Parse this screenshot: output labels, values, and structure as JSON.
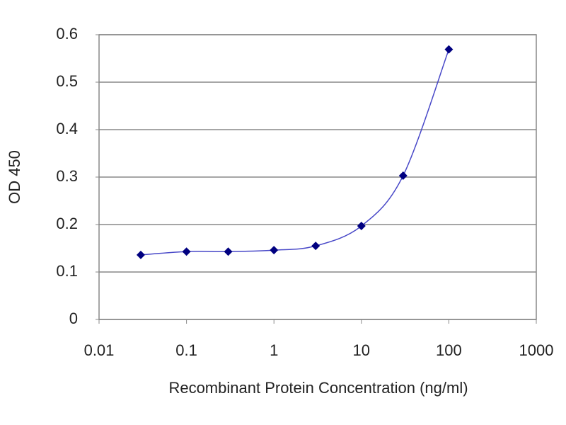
{
  "chart_data": {
    "type": "line",
    "x_label": "Recombinant Protein Concentration (ng/ml)",
    "y_label": "OD 450",
    "x": [
      0.03,
      0.1,
      0.3,
      1,
      3,
      10,
      30,
      100
    ],
    "series": [
      {
        "color": "#000080",
        "values": [
          0.136,
          0.143,
          0.143,
          0.146,
          0.155,
          0.197,
          0.303,
          0.569
        ]
      }
    ],
    "xlim": [
      0.01,
      1000
    ],
    "xticks": [
      0.01,
      0.1,
      1,
      10,
      100,
      1000
    ],
    "xscale": "log",
    "ylim": [
      0,
      0.6
    ],
    "yticks": [
      0,
      0.1,
      0.2,
      0.3,
      0.4,
      0.5,
      0.6
    ],
    "grid": true
  }
}
